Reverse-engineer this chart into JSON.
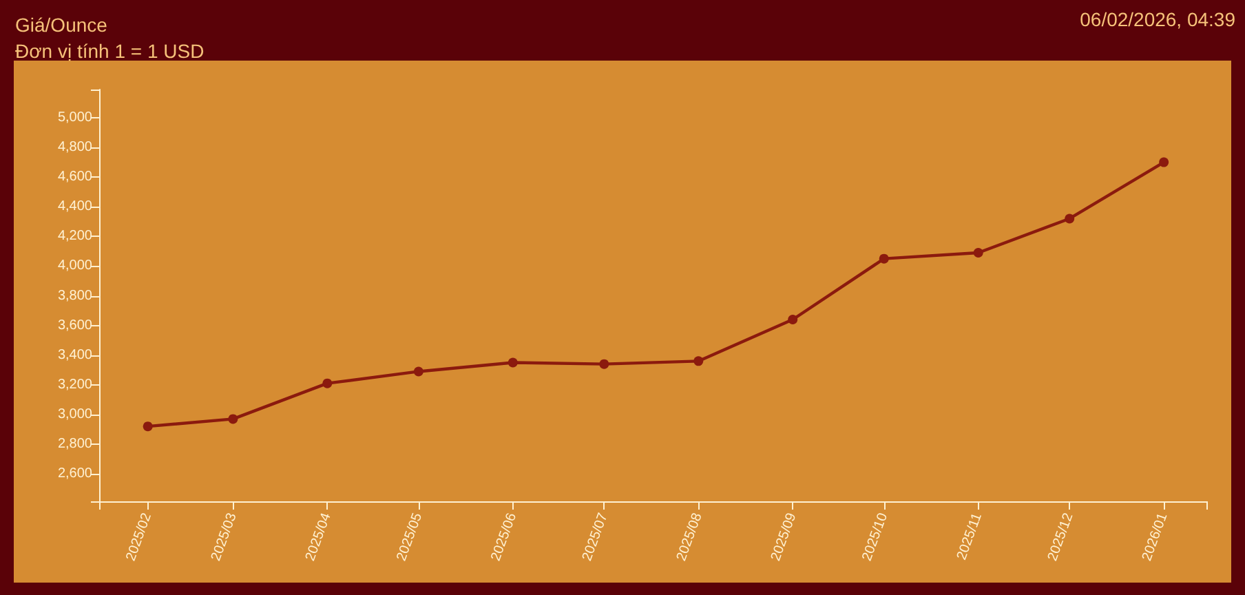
{
  "chart_data": {
    "type": "line",
    "title": "Giá/Ounce",
    "subtitle": "Đơn vị tính 1 = 1 USD",
    "annotations": [
      "06/02/2026, 04:39"
    ],
    "x": [
      "2025-02",
      "2025-03",
      "2025-04",
      "2025-05",
      "2025-06",
      "2025-07",
      "2025-08",
      "2025-09",
      "2025-10",
      "2025-11",
      "2025-12",
      "2026-01"
    ],
    "values": [
      2920,
      2970,
      3210,
      3290,
      3350,
      3340,
      3360,
      3640,
      4050,
      4090,
      4320,
      4700
    ],
    "color": "#8b1a0e",
    "marker": "circle",
    "line_style": "solid",
    "grid": false,
    "xlim": [
      "2025-01-16",
      "2026-01-15"
    ],
    "xticks": [
      {
        "value": "2025-01-16",
        "label": null
      },
      {
        "value": "2025-02",
        "label": "2025/02"
      },
      {
        "value": "2025-03",
        "label": "2025/03"
      },
      {
        "value": "2025-04",
        "label": "2025/04"
      },
      {
        "value": "2025-05",
        "label": "2025/05"
      },
      {
        "value": "2025-06",
        "label": "2025/06"
      },
      {
        "value": "2025-07",
        "label": "2025/07"
      },
      {
        "value": "2025-08",
        "label": "2025/08"
      },
      {
        "value": "2025-09",
        "label": "2025/09"
      },
      {
        "value": "2025-10",
        "label": "2025/10"
      },
      {
        "value": "2025-11",
        "label": "2025/11"
      },
      {
        "value": "2025-12",
        "label": "2025/12"
      },
      {
        "value": "2026-01",
        "label": "2026/01"
      },
      {
        "value": "2026-01-15",
        "label": null
      }
    ],
    "ylim": [
      2415,
      5190
    ],
    "yticks": [
      {
        "value": 2415,
        "label": null
      },
      {
        "value": 2600,
        "label": "2,600"
      },
      {
        "value": 2800,
        "label": "2,800"
      },
      {
        "value": 3000,
        "label": "3,000"
      },
      {
        "value": 3200,
        "label": "3,200"
      },
      {
        "value": 3400,
        "label": "3,400"
      },
      {
        "value": 3600,
        "label": "3,600"
      },
      {
        "value": 3800,
        "label": "3,800"
      },
      {
        "value": 4000,
        "label": "4,000"
      },
      {
        "value": 4200,
        "label": "4,200"
      },
      {
        "value": 4400,
        "label": "4,400"
      },
      {
        "value": 4600,
        "label": "4,600"
      },
      {
        "value": 4800,
        "label": "4,800"
      },
      {
        "value": 5000,
        "label": "5,000"
      },
      {
        "value": 5190,
        "label": null
      }
    ]
  }
}
